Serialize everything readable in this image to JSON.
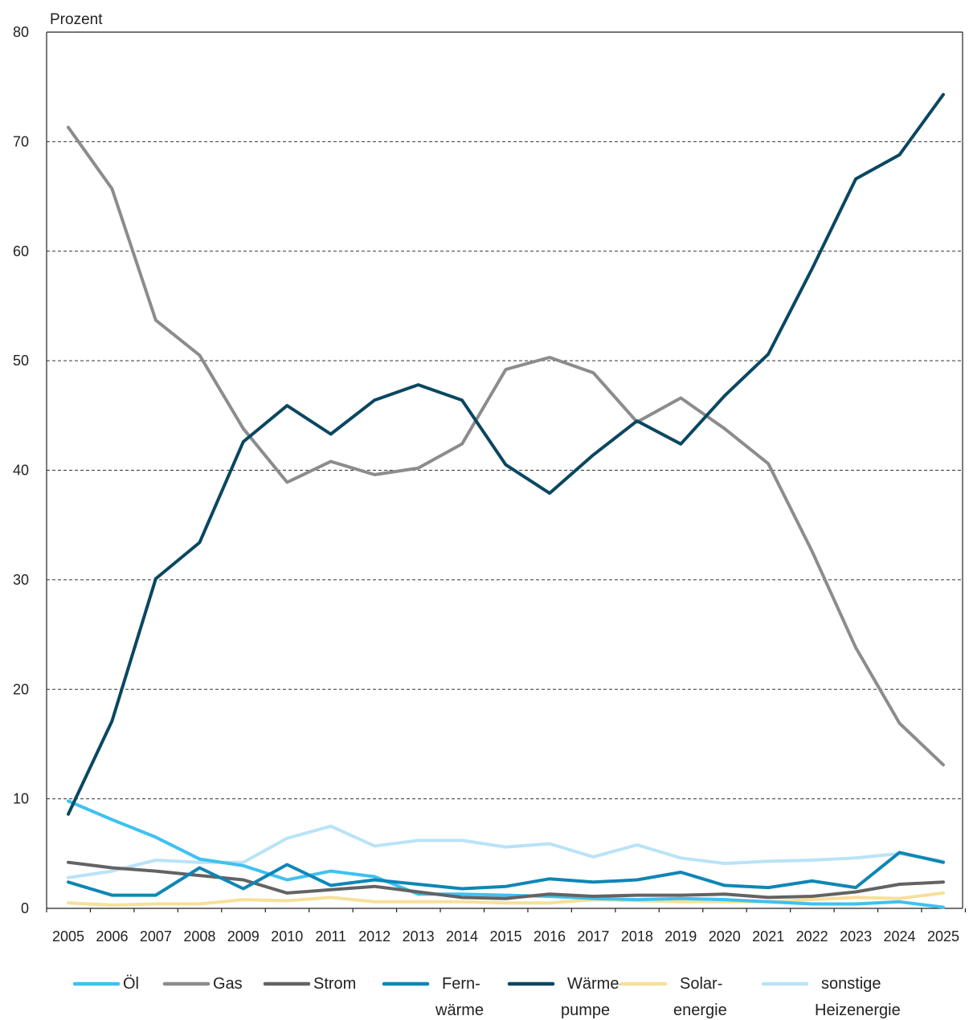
{
  "chart_data": {
    "type": "line",
    "ylabel": "Prozent",
    "ylim": [
      0,
      80
    ],
    "yticks": [
      0,
      10,
      20,
      30,
      40,
      50,
      60,
      70,
      80
    ],
    "grid": "horizontal dashed",
    "legend_position": "bottom",
    "x": [
      "2005",
      "2006",
      "2007",
      "2008",
      "2009",
      "2010",
      "2011",
      "2012",
      "2013",
      "2014",
      "2015",
      "2016",
      "2017",
      "2018",
      "2019",
      "2020",
      "2021",
      "2022",
      "2023",
      "2024",
      "2025"
    ],
    "series": [
      {
        "name": "Öl",
        "legend_lines": [
          "Öl"
        ],
        "color": "#3ec1f0",
        "values": [
          9.8,
          8.1,
          6.5,
          4.5,
          3.9,
          2.6,
          3.4,
          2.9,
          1.3,
          1.3,
          1.2,
          1.1,
          0.9,
          0.8,
          0.9,
          0.8,
          0.6,
          0.4,
          0.4,
          0.6,
          0.1
        ]
      },
      {
        "name": "Gas",
        "legend_lines": [
          "Gas"
        ],
        "color": "#8c8c8c",
        "values": [
          71.3,
          65.7,
          53.7,
          50.5,
          43.8,
          38.9,
          40.8,
          39.6,
          40.2,
          42.4,
          49.2,
          50.3,
          48.9,
          44.4,
          46.6,
          43.8,
          40.6,
          32.6,
          23.8,
          16.9,
          13.1
        ]
      },
      {
        "name": "Strom",
        "legend_lines": [
          "Strom"
        ],
        "color": "#636363",
        "values": [
          4.2,
          3.7,
          3.4,
          3.0,
          2.6,
          1.4,
          1.7,
          2.0,
          1.5,
          1.0,
          0.9,
          1.3,
          1.1,
          1.2,
          1.2,
          1.3,
          1.0,
          1.1,
          1.5,
          2.2,
          2.4
        ]
      },
      {
        "name": "Fernwärme",
        "legend_lines": [
          "Fern-",
          "wärme"
        ],
        "color": "#0e86b5",
        "values": [
          2.4,
          1.2,
          1.2,
          3.7,
          1.8,
          4.0,
          2.1,
          2.6,
          2.2,
          1.8,
          2.0,
          2.7,
          2.4,
          2.6,
          3.3,
          2.1,
          1.9,
          2.5,
          1.9,
          5.1,
          4.2
        ]
      },
      {
        "name": "Wärmepumpe",
        "legend_lines": [
          "Wärme-",
          "pumpe"
        ],
        "color": "#0a4761",
        "values": [
          8.6,
          17.1,
          30.1,
          33.4,
          42.6,
          45.9,
          43.3,
          46.4,
          47.8,
          46.4,
          40.5,
          37.9,
          41.4,
          44.5,
          42.4,
          46.8,
          50.6,
          58.4,
          66.6,
          68.8,
          74.3
        ]
      },
      {
        "name": "Solarenergie",
        "legend_lines": [
          "Solar-",
          "energie"
        ],
        "color": "#f6e09a",
        "values": [
          0.5,
          0.3,
          0.4,
          0.4,
          0.8,
          0.7,
          1.0,
          0.6,
          0.6,
          0.6,
          0.5,
          0.5,
          0.8,
          0.7,
          0.6,
          0.6,
          0.6,
          0.8,
          1.0,
          0.9,
          1.4
        ]
      },
      {
        "name": "sonstige Heizenergie",
        "legend_lines": [
          "sonstige",
          "Heizenergie"
        ],
        "color": "#b9e3f7",
        "values": [
          2.8,
          3.4,
          4.4,
          4.2,
          4.2,
          6.4,
          7.5,
          5.7,
          6.2,
          6.2,
          5.6,
          5.9,
          4.7,
          5.8,
          4.6,
          4.1,
          4.3,
          4.4,
          4.6,
          5.0,
          4.3
        ]
      }
    ]
  }
}
